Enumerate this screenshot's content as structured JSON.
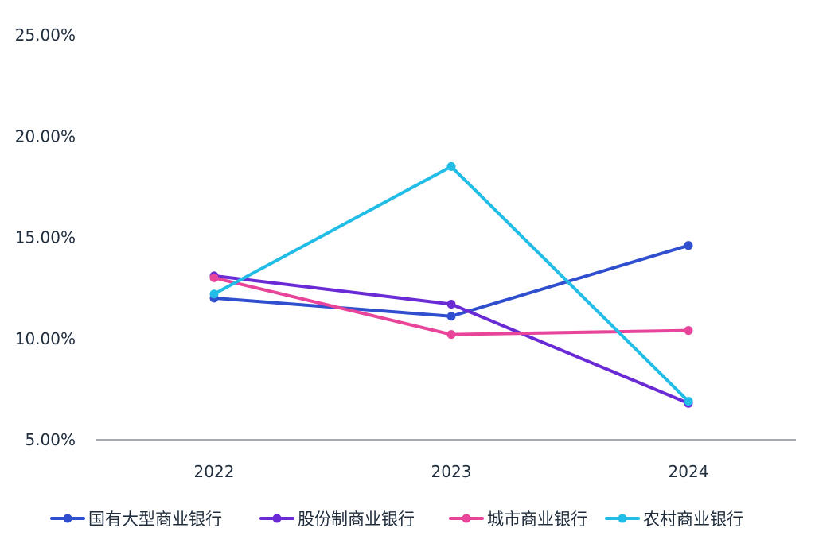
{
  "chart_data": {
    "type": "line",
    "title": "",
    "xlabel": "",
    "ylabel": "",
    "categories": [
      "2022",
      "2023",
      "2024"
    ],
    "y_ticks": [
      "25.00%",
      "20.00%",
      "15.00%",
      "10.00%",
      "5.00%"
    ],
    "y_tick_values": [
      25,
      20,
      15,
      10,
      5
    ],
    "ylim": [
      5,
      25
    ],
    "grid": false,
    "legend_position": "bottom",
    "series": [
      {
        "name": "国有大型商业银行",
        "values": [
          12.0,
          11.1,
          14.6
        ],
        "color": "#2f4fcf"
      },
      {
        "name": "股份制商业银行",
        "values": [
          13.1,
          11.7,
          6.8
        ],
        "color": "#6a2bd6"
      },
      {
        "name": "城市商业银行",
        "values": [
          13.0,
          10.2,
          10.4
        ],
        "color": "#e8449a"
      },
      {
        "name": "农村商业银行",
        "values": [
          12.2,
          18.5,
          6.9
        ],
        "color": "#22bde6"
      }
    ]
  }
}
